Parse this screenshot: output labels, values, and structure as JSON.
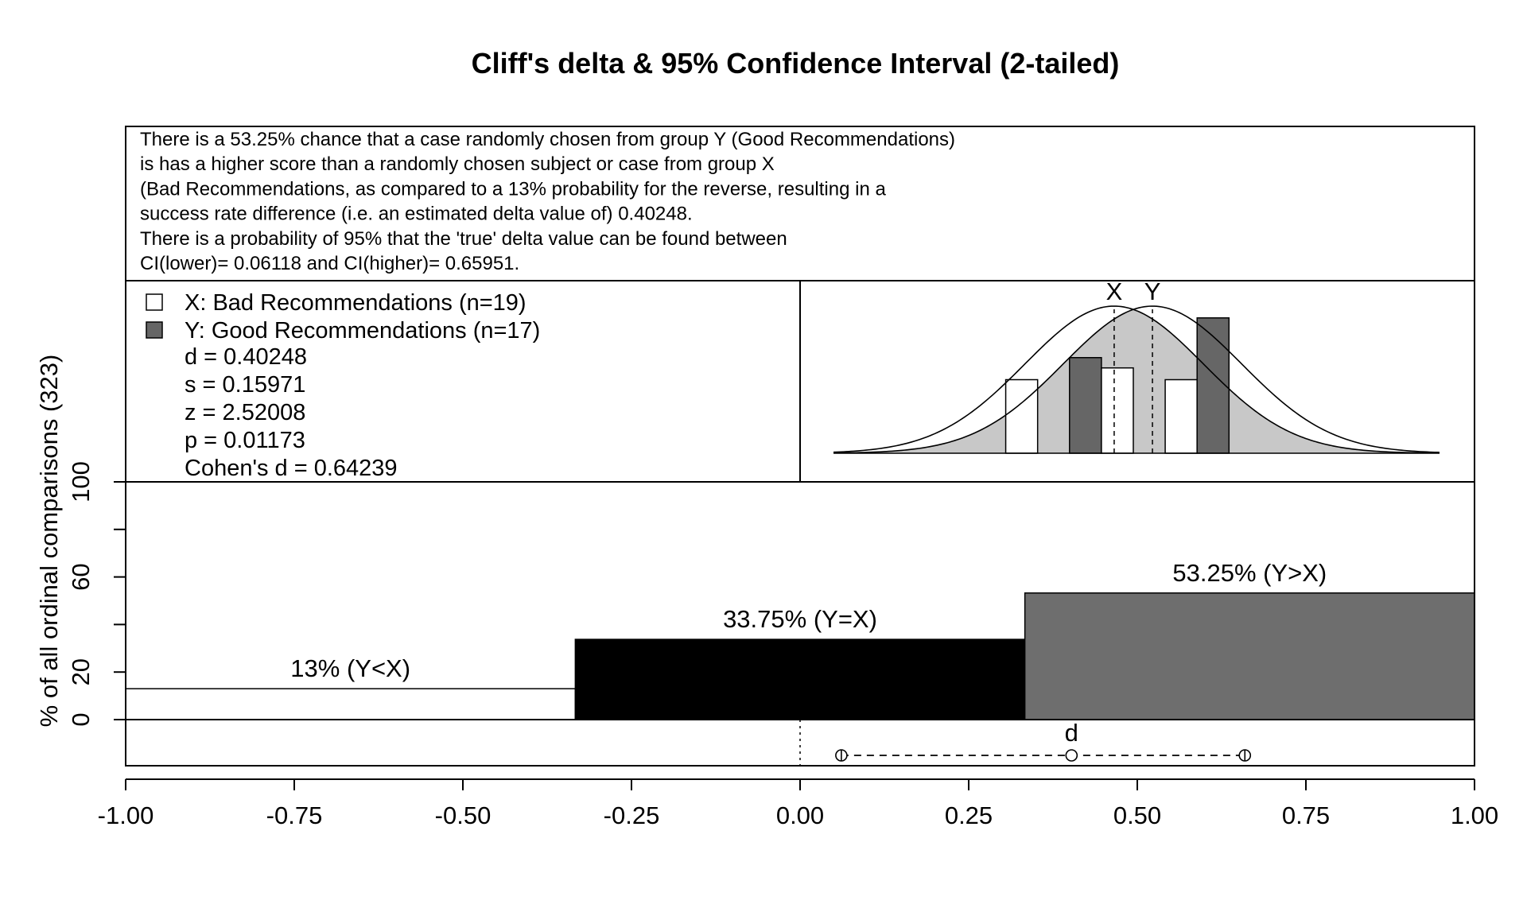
{
  "chart_data": {
    "type": "bar",
    "title": "Cliff's delta  & 95% Confidence Interval (2-tailed)",
    "ylabel": "% of all ordinal comparisons (323)",
    "xlabel": "",
    "xlim": [
      -1,
      1
    ],
    "ylim": [
      0,
      100
    ],
    "x_tick_labels": [
      "-1.00",
      "-0.75",
      "-0.50",
      "-0.25",
      "0.00",
      "0.25",
      "0.50",
      "0.75",
      "1.00"
    ],
    "y_tick_labels": [
      "0",
      "20",
      "60",
      "100"
    ],
    "y_ticks_unlabeled": [
      40,
      80
    ],
    "grid": false,
    "info_text": [
      "There is a 53.25% chance that a case randomly chosen from group Y (Good Recommendations)",
      "is has a higher score than a randomly chosen subject or case from group X",
      "(Bad Recommendations, as compared to a 13% probability for the reverse, resulting in a",
      "success rate difference (i.e. an estimated delta value of) 0.40248.",
      "There is a probability of 95% that the 'true' delta value can be found between",
      "CI(lower)= 0.06118 and CI(higher)= 0.65951."
    ],
    "legend": {
      "placement": "top-left",
      "entries": [
        {
          "label": "X: Bad Recommendations (n=19)",
          "color": "#ffffff"
        },
        {
          "label": "Y: Good Recommendations (n=17)",
          "color": "#666666"
        }
      ],
      "stats": [
        "d = 0.40248",
        "s = 0.15971",
        "z = 2.52008",
        "p = 0.01173",
        "Cohen's d = 0.64239"
      ]
    },
    "bars": [
      {
        "label": "13% (Y<X)",
        "value": 13,
        "x_start": -1.0,
        "x_end": -0.3333,
        "color": "#ffffff"
      },
      {
        "label": "33.75% (Y=X)",
        "value": 33.75,
        "x_start": -0.3333,
        "x_end": 0.3333,
        "color": "#000000"
      },
      {
        "label": "53.25% (Y>X)",
        "value": 53.25,
        "x_start": 0.3333,
        "x_end": 1.0,
        "color": "#6e6e6e"
      }
    ],
    "delta": {
      "label": "d",
      "value": 0.40248,
      "ci_lower": 0.06118,
      "ci_upper": 0.65951
    },
    "inset": {
      "x_label": "X",
      "y_label": "Y",
      "x_mean": 0.47,
      "y_mean": 0.53,
      "sd": 0.14,
      "xlim": [
        0.03,
        0.98
      ],
      "histogram": [
        {
          "x_start": 0.3,
          "x_end": 0.35,
          "height": 0.5,
          "group": "X"
        },
        {
          "x_start": 0.4,
          "x_end": 0.45,
          "height": 0.65,
          "group": "Y"
        },
        {
          "x_start": 0.45,
          "x_end": 0.5,
          "height": 0.58,
          "group": "X"
        },
        {
          "x_start": 0.55,
          "x_end": 0.6,
          "height": 0.5,
          "group": "X"
        },
        {
          "x_start": 0.6,
          "x_end": 0.65,
          "height": 0.92,
          "group": "Y"
        }
      ],
      "colors": {
        "x_fill": "#ffffff",
        "y_fill": "#666666",
        "overlap_fill": "#c8c8c8"
      }
    }
  }
}
